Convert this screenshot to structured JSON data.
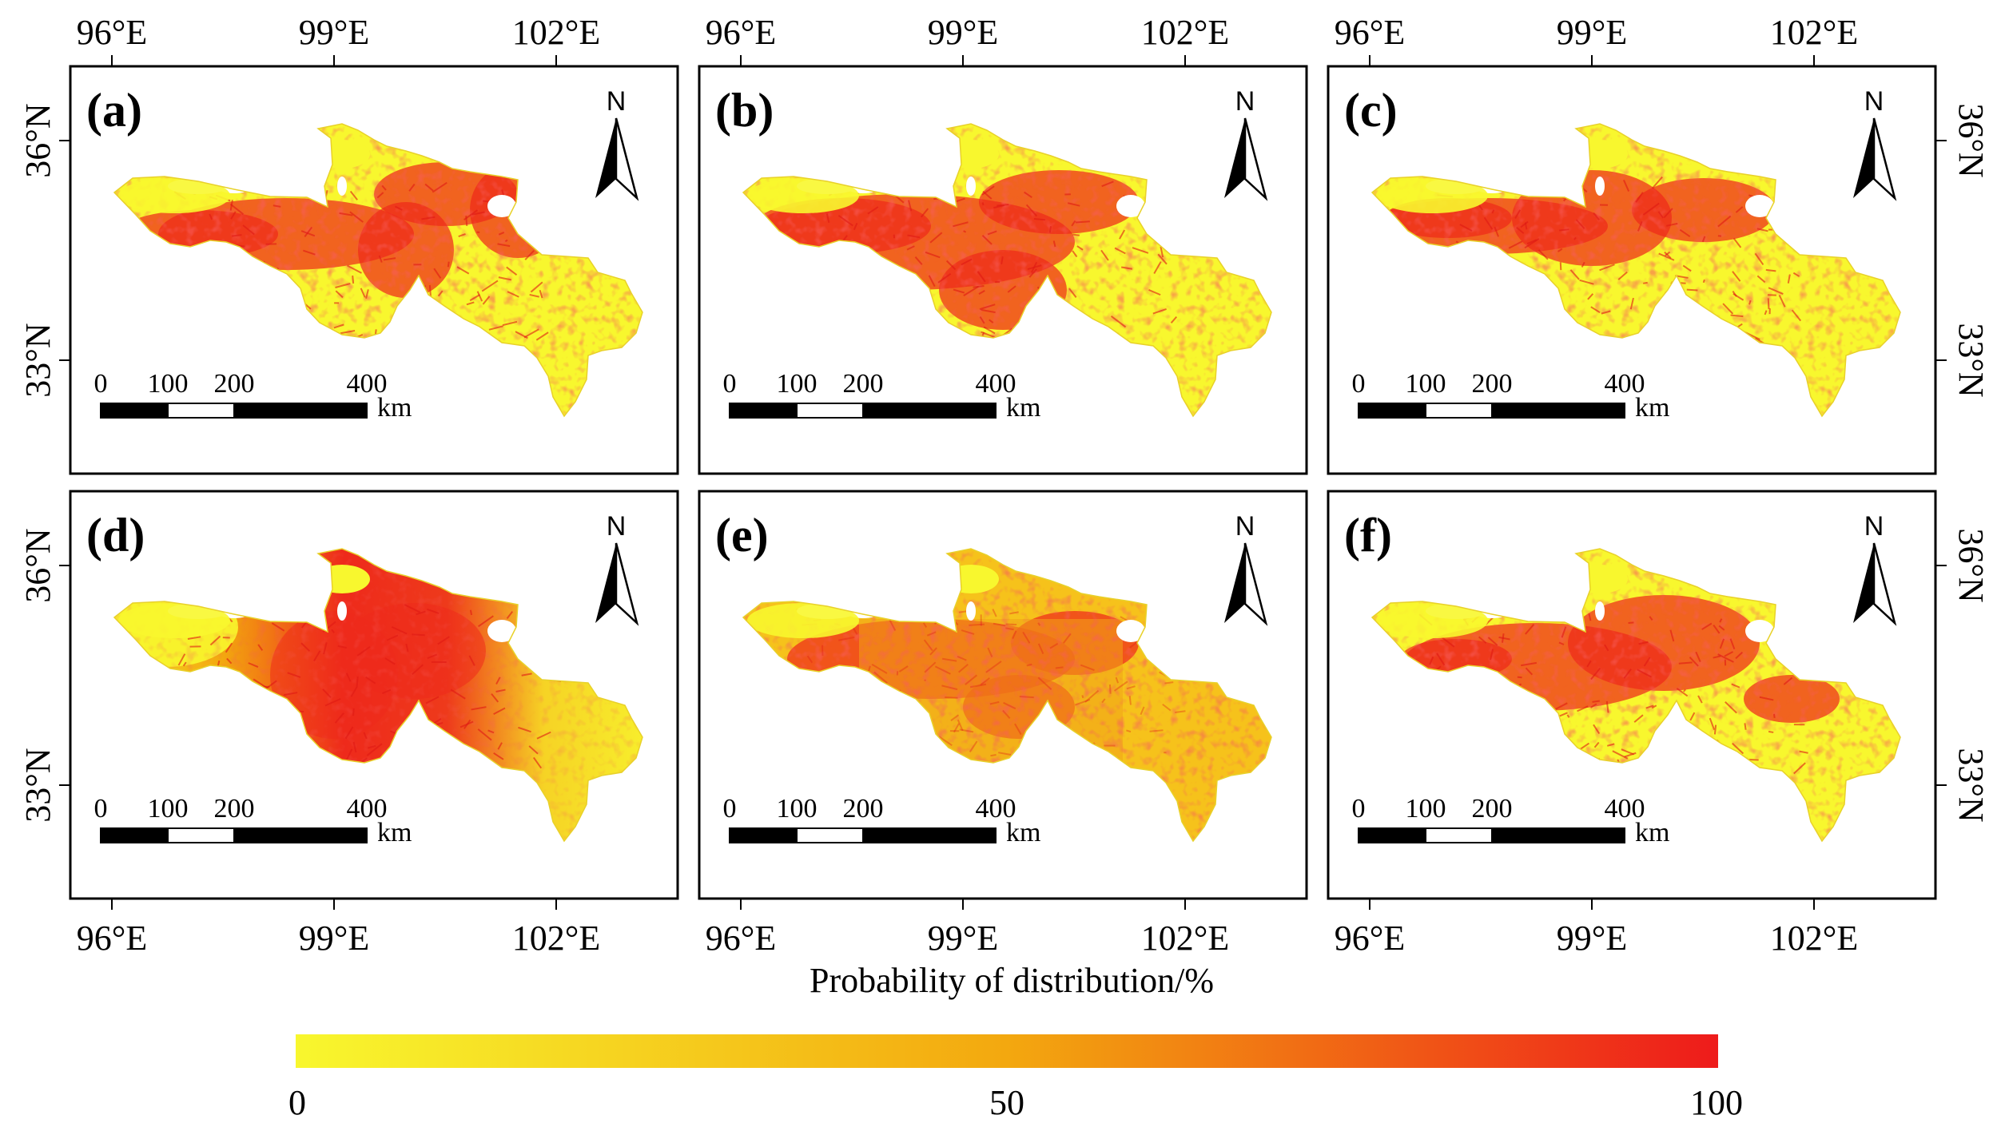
{
  "figure": {
    "panels": [
      {
        "label": "(a)",
        "pattern": "ring"
      },
      {
        "label": "(b)",
        "pattern": "south"
      },
      {
        "label": "(c)",
        "pattern": "veins"
      },
      {
        "label": "(d)",
        "pattern": "smooth"
      },
      {
        "label": "(e)",
        "pattern": "flat"
      },
      {
        "label": "(f)",
        "pattern": "central"
      }
    ],
    "north_label": "N",
    "scale_bar": {
      "ticks": [
        "0",
        "100",
        "200",
        "400"
      ],
      "unit": "km"
    },
    "lon_ticks": [
      "96°E",
      "99°E",
      "102°E"
    ],
    "lat_ticks": [
      "36°N",
      "33°N"
    ]
  },
  "legend": {
    "title": "Probability of distribution/%",
    "min_label": "0",
    "mid_label": "50",
    "max_label": "100",
    "range": [
      0,
      100
    ],
    "colors": {
      "low": "#f8f72e",
      "mid": "#f3a80f",
      "high": "#ee1b1b"
    }
  }
}
